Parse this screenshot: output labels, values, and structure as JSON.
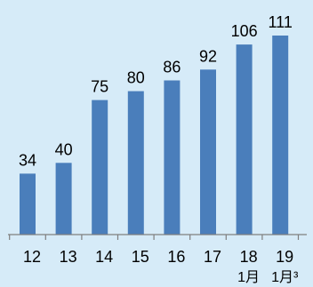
{
  "chart_data": {
    "type": "bar",
    "title": "",
    "xlabel": "",
    "ylabel": "",
    "categories": [
      "12",
      "13",
      "14",
      "15",
      "16",
      "17",
      "18",
      "19"
    ],
    "category_sublabels": [
      "",
      "",
      "",
      "",
      "",
      "",
      "1月",
      "1月³"
    ],
    "values": [
      34,
      40,
      75,
      80,
      86,
      92,
      106,
      111
    ],
    "ylim": [
      0,
      111
    ],
    "grid": false,
    "legend": "none",
    "colors": {
      "background": "#d6ebf8",
      "bar": "#4a7ebb",
      "axis": "#7f7f7f",
      "text": "#000000"
    }
  }
}
